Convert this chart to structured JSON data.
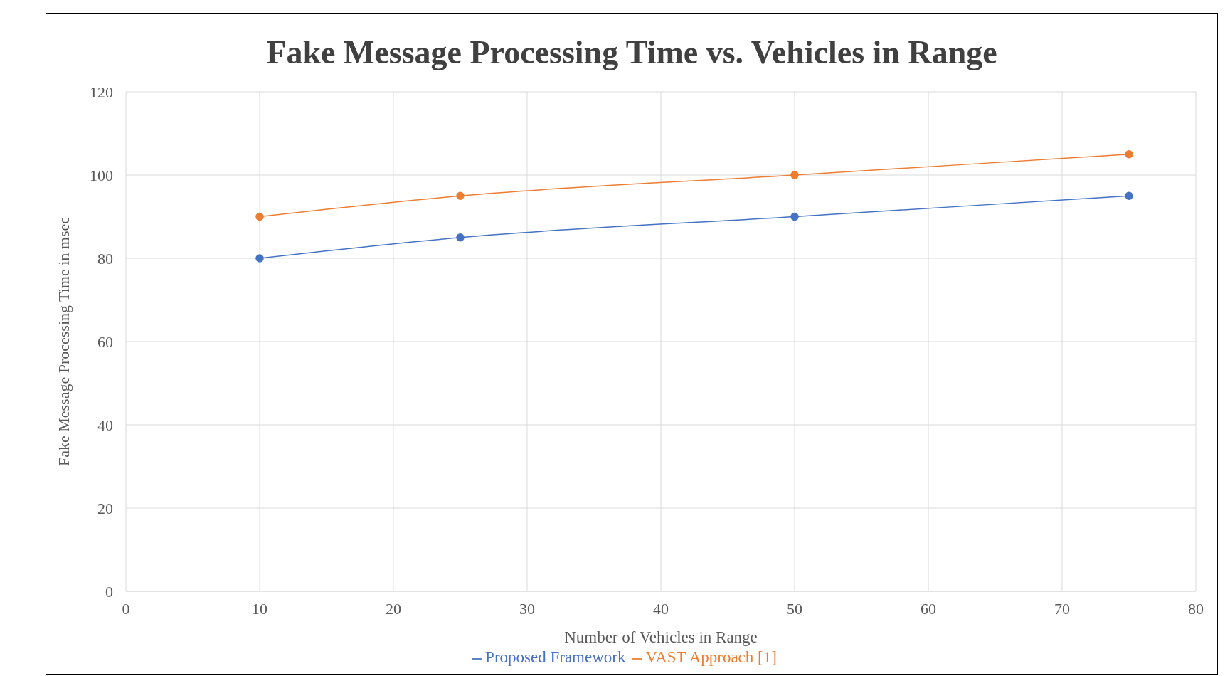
{
  "chart_data": {
    "type": "line",
    "title": "Fake Message Processing Time vs. Vehicles in Range",
    "xlabel": "Number of Vehicles in Range",
    "ylabel": "Fake Message Processing Time in msec",
    "x": [
      10,
      25,
      50,
      75
    ],
    "series": [
      {
        "name": "Proposed Framework",
        "color": "#4472c4",
        "values": [
          80,
          85,
          90,
          95
        ]
      },
      {
        "name": "VAST Approach [1]",
        "color": "#ed7d31",
        "values": [
          90,
          95,
          100,
          105
        ]
      }
    ],
    "xlim": [
      0,
      80
    ],
    "xticks": [
      0,
      10,
      20,
      30,
      40,
      50,
      60,
      70,
      80
    ],
    "ylim": [
      0,
      120
    ],
    "yticks": [
      0,
      20,
      40,
      60,
      80,
      100,
      120
    ],
    "grid": true,
    "legend": "bottom",
    "marker": "circle",
    "line_style": "solid"
  }
}
